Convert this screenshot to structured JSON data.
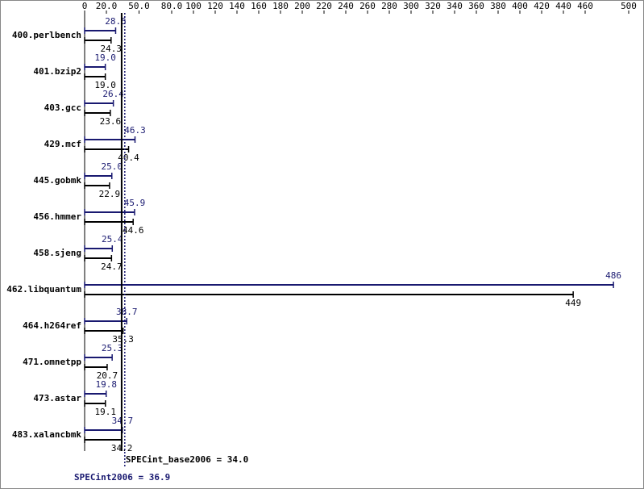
{
  "chart_data": {
    "type": "bar",
    "categories": [
      "400.perlbench",
      "401.bzip2",
      "403.gcc",
      "429.mcf",
      "445.gobmk",
      "456.hmmer",
      "458.sjeng",
      "462.libquantum",
      "464.h264ref",
      "471.omnetpp",
      "473.astar",
      "483.xalancbmk"
    ],
    "series": [
      {
        "color": "#191970",
        "values": [
          28.5,
          19.0,
          26.4,
          46.3,
          25.0,
          45.9,
          25.4,
          486,
          38.7,
          25.3,
          19.8,
          34.7
        ],
        "value_labels": [
          "28.5",
          "19.0",
          "26.4",
          "46.3",
          "25.0",
          "45.9",
          "25.4",
          "486",
          "38.7",
          "25.3",
          "19.8",
          "34.7"
        ]
      },
      {
        "color": "#000000",
        "values": [
          24.3,
          19.0,
          23.6,
          40.4,
          22.9,
          44.6,
          24.7,
          449,
          35.3,
          20.7,
          19.1,
          34.2
        ],
        "value_labels": [
          "24.3",
          "19.0",
          "23.6",
          "40.4",
          "22.9",
          "44.6",
          "24.7",
          "449",
          "35.3",
          "20.7",
          "19.1",
          "34.2"
        ]
      }
    ],
    "xlim": [
      0,
      500
    ],
    "xticks": [
      0,
      {
        "value": 20,
        "label": "20.0"
      },
      {
        "value": 50,
        "label": "50.0"
      },
      {
        "value": 80,
        "label": "80.0"
      },
      100,
      120,
      140,
      160,
      180,
      200,
      220,
      240,
      260,
      280,
      300,
      320,
      340,
      360,
      380,
      400,
      420,
      440,
      460,
      500
    ],
    "reference_lines": [
      {
        "value": 34.0,
        "label": "SPECint_base2006 = 34.0",
        "color": "#000000",
        "dashed": false
      },
      {
        "value": 36.9,
        "label": "SPECint2006 = 36.9",
        "color": "#191970",
        "dashed": true
      }
    ]
  }
}
